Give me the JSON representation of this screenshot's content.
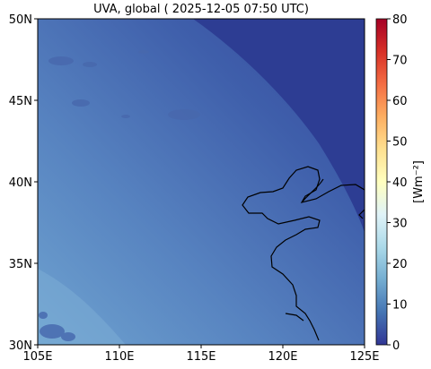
{
  "title": "UVA, global ( 2025-12-05 07:50 UTC)",
  "map": {
    "lon_range": [
      105,
      125
    ],
    "lat_range": [
      30,
      50
    ],
    "x_ticks": [
      {
        "value": 105,
        "label": "105E"
      },
      {
        "value": 110,
        "label": "110E"
      },
      {
        "value": 115,
        "label": "115E"
      },
      {
        "value": 120,
        "label": "120E"
      },
      {
        "value": 125,
        "label": "125E"
      }
    ],
    "y_ticks": [
      {
        "value": 30,
        "label": "30N"
      },
      {
        "value": 35,
        "label": "35N"
      },
      {
        "value": 40,
        "label": "40N"
      },
      {
        "value": 45,
        "label": "45N"
      },
      {
        "value": 50,
        "label": "50N"
      }
    ]
  },
  "colorbar": {
    "label": "[Wm⁻²]",
    "range": [
      0,
      80
    ],
    "colormap": "RdYlBu_r",
    "ticks": [
      {
        "value": 0,
        "label": "0"
      },
      {
        "value": 10,
        "label": "10"
      },
      {
        "value": 20,
        "label": "20"
      },
      {
        "value": 30,
        "label": "30"
      },
      {
        "value": 40,
        "label": "40"
      },
      {
        "value": 50,
        "label": "50"
      },
      {
        "value": 60,
        "label": "60"
      },
      {
        "value": 70,
        "label": "70"
      },
      {
        "value": 80,
        "label": "80"
      }
    ]
  },
  "colors": {
    "field_light": "#6a9ccc",
    "field_dark": "#2b3b92",
    "coastline": "#000000"
  }
}
